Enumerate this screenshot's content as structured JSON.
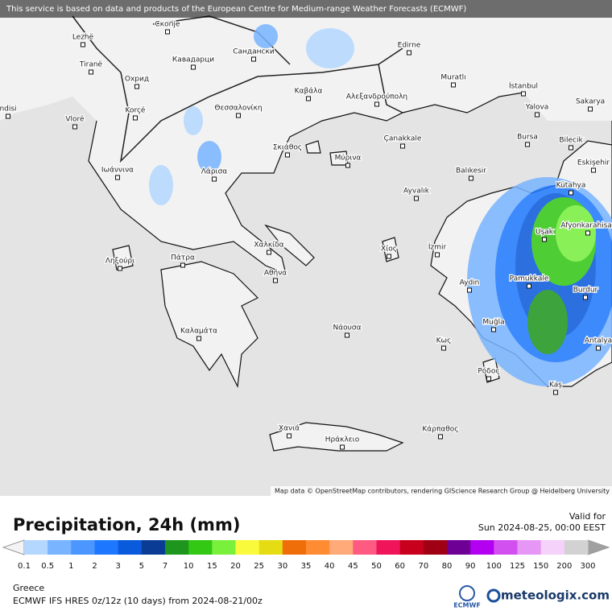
{
  "header": {
    "notice": "This service is based on data and products of the European Centre for Medium-range Weather Forecasts (ECMWF)",
    "attribution": "Map data © OpenStreetMap contributors, rendering GIScience Research Group @ Heidelberg University"
  },
  "cities": [
    "ndisi",
    "Lezhë",
    "Tiranë",
    "Охрид",
    "Скопје",
    "Кавадарци",
    "Сандански",
    "Edirne",
    "Muratlı",
    "İstanbul",
    "Korçë",
    "Vlorë",
    "Θεσσαλονίκη",
    "Καβάλα",
    "Αλεξανδρούπολη",
    "Yalova",
    "Sakarya",
    "Bursa",
    "Bilecik",
    "Çanakkale",
    "Σκιάθος",
    "Μύρινα",
    "Ιωάννινα",
    "Λάρισα",
    "Balıkesir",
    "Eskişehir",
    "Ayvalık",
    "Kütahya",
    "Afyonkarahisar",
    "Uşak",
    "Χαλκίδα",
    "İzmir",
    "Χίος",
    "Πάτρα",
    "Ληξούρι",
    "Αθήνα",
    "Pamukkale",
    "Aydın",
    "Burdur",
    "Muğla",
    "Καλαμάτα",
    "Νάουσα",
    "Κως",
    "Antalya",
    "Ρόδος",
    "Kaş",
    "Χανιά",
    "Ηράκλειο",
    "Κάρπαθος"
  ],
  "legend": {
    "title": "Precipitation, 24h (mm)",
    "valid_label": "Valid for",
    "valid_time": "Sun 2024-08-25, 00:00 EEST",
    "ticks": [
      0.1,
      0.5,
      1,
      2,
      3,
      5,
      7,
      10,
      15,
      20,
      25,
      30,
      35,
      40,
      45,
      50,
      60,
      70,
      80,
      90,
      100,
      125,
      150,
      200,
      300
    ],
    "colors": [
      "#b4d7ff",
      "#78b4ff",
      "#4b96ff",
      "#1e78ff",
      "#0a5adc",
      "#0a3c96",
      "#1e961e",
      "#32c814",
      "#78f03c",
      "#fafa3c",
      "#e6dc14",
      "#f06e0a",
      "#ff8c32",
      "#ffaa78",
      "#ff5a82",
      "#f0145a",
      "#c8001e",
      "#a00014",
      "#6e0096",
      "#b400f0",
      "#d250f0",
      "#e696f5",
      "#f5d2fa",
      "#d2d2d2"
    ]
  },
  "footer": {
    "region": "Greece",
    "model": "ECMWF IFS HRES 0z/12z (10 days) from  2024-08-21/00z",
    "logo": "ECMWF",
    "brand": "meteologix.com"
  }
}
